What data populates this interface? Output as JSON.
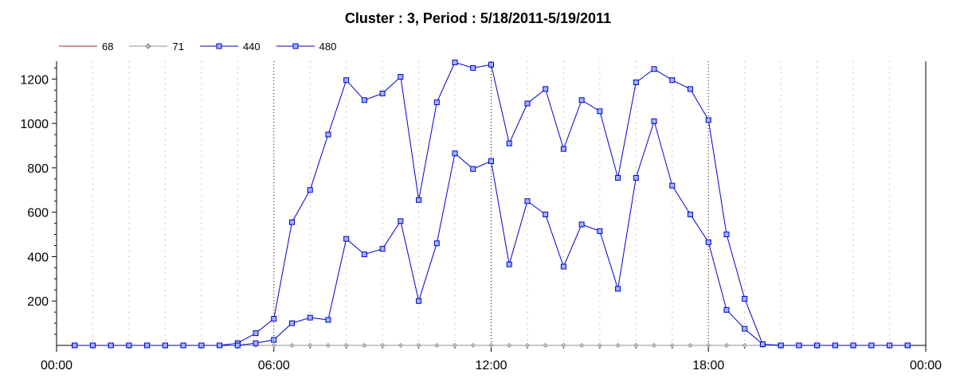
{
  "chart_data": {
    "type": "line",
    "title": "Cluster : 3, Period : 5/18/2011-5/19/2011",
    "xlabel": "",
    "ylabel": "",
    "x_ticks": [
      "00:00",
      "06:00",
      "12:00",
      "18:00",
      "00:00"
    ],
    "y_ticks": [
      "200",
      "400",
      "600",
      "800",
      "1000",
      "1200"
    ],
    "xlim_hours": [
      0,
      24
    ],
    "ylim": [
      0,
      1280
    ],
    "grid": true,
    "legend_position": "top-left",
    "x_hours": [
      0.5,
      1,
      1.5,
      2,
      2.5,
      3,
      3.5,
      4,
      4.5,
      5,
      5.5,
      6,
      6.5,
      7,
      7.5,
      8,
      8.5,
      9,
      9.5,
      10,
      10.5,
      11,
      11.5,
      12,
      12.5,
      13,
      13.5,
      14,
      14.5,
      15,
      15.5,
      16,
      16.5,
      17,
      17.5,
      18,
      18.5,
      19,
      19.5,
      20,
      20.5,
      21,
      21.5,
      22,
      22.5,
      23,
      23.5
    ],
    "series": [
      {
        "name": "68",
        "color": "#b22222",
        "marker": "none",
        "values": [
          0,
          0,
          0,
          0,
          0,
          0,
          0,
          0,
          0,
          0,
          0,
          0,
          0,
          0,
          0,
          0,
          0,
          0,
          0,
          0,
          0,
          0,
          0,
          0,
          0,
          0,
          0,
          0,
          0,
          0,
          0,
          0,
          0,
          0,
          0,
          0,
          0,
          0,
          0,
          0,
          0,
          0,
          0,
          0,
          0,
          0,
          0
        ]
      },
      {
        "name": "71",
        "color": "#909090",
        "marker": "diamond",
        "values": [
          0,
          0,
          0,
          0,
          0,
          0,
          0,
          0,
          0,
          0,
          0,
          0,
          0,
          0,
          0,
          0,
          0,
          0,
          0,
          0,
          0,
          0,
          0,
          0,
          0,
          0,
          0,
          0,
          0,
          0,
          0,
          0,
          0,
          0,
          0,
          0,
          0,
          0,
          0,
          0,
          0,
          0,
          0,
          0,
          0,
          0,
          0
        ]
      },
      {
        "name": "440",
        "color": "#0000cc",
        "marker": "square",
        "values": [
          0,
          0,
          0,
          0,
          0,
          0,
          0,
          0,
          0,
          10,
          55,
          120,
          555,
          700,
          950,
          1195,
          1105,
          1135,
          1210,
          655,
          1095,
          1275,
          1250,
          1265,
          910,
          1090,
          1155,
          885,
          1105,
          1055,
          755,
          1185,
          1245,
          1195,
          1155,
          1015,
          500,
          210,
          5,
          0,
          0,
          0,
          0,
          0,
          0,
          0,
          0
        ]
      },
      {
        "name": "480",
        "color": "#0000cc",
        "marker": "square",
        "values": [
          0,
          0,
          0,
          0,
          0,
          0,
          0,
          0,
          0,
          0,
          10,
          25,
          100,
          125,
          115,
          480,
          410,
          435,
          560,
          200,
          460,
          865,
          795,
          830,
          365,
          650,
          590,
          355,
          545,
          515,
          255,
          755,
          1010,
          720,
          590,
          465,
          160,
          75,
          5,
          0,
          0,
          0,
          0,
          0,
          0,
          0,
          0
        ]
      }
    ]
  }
}
